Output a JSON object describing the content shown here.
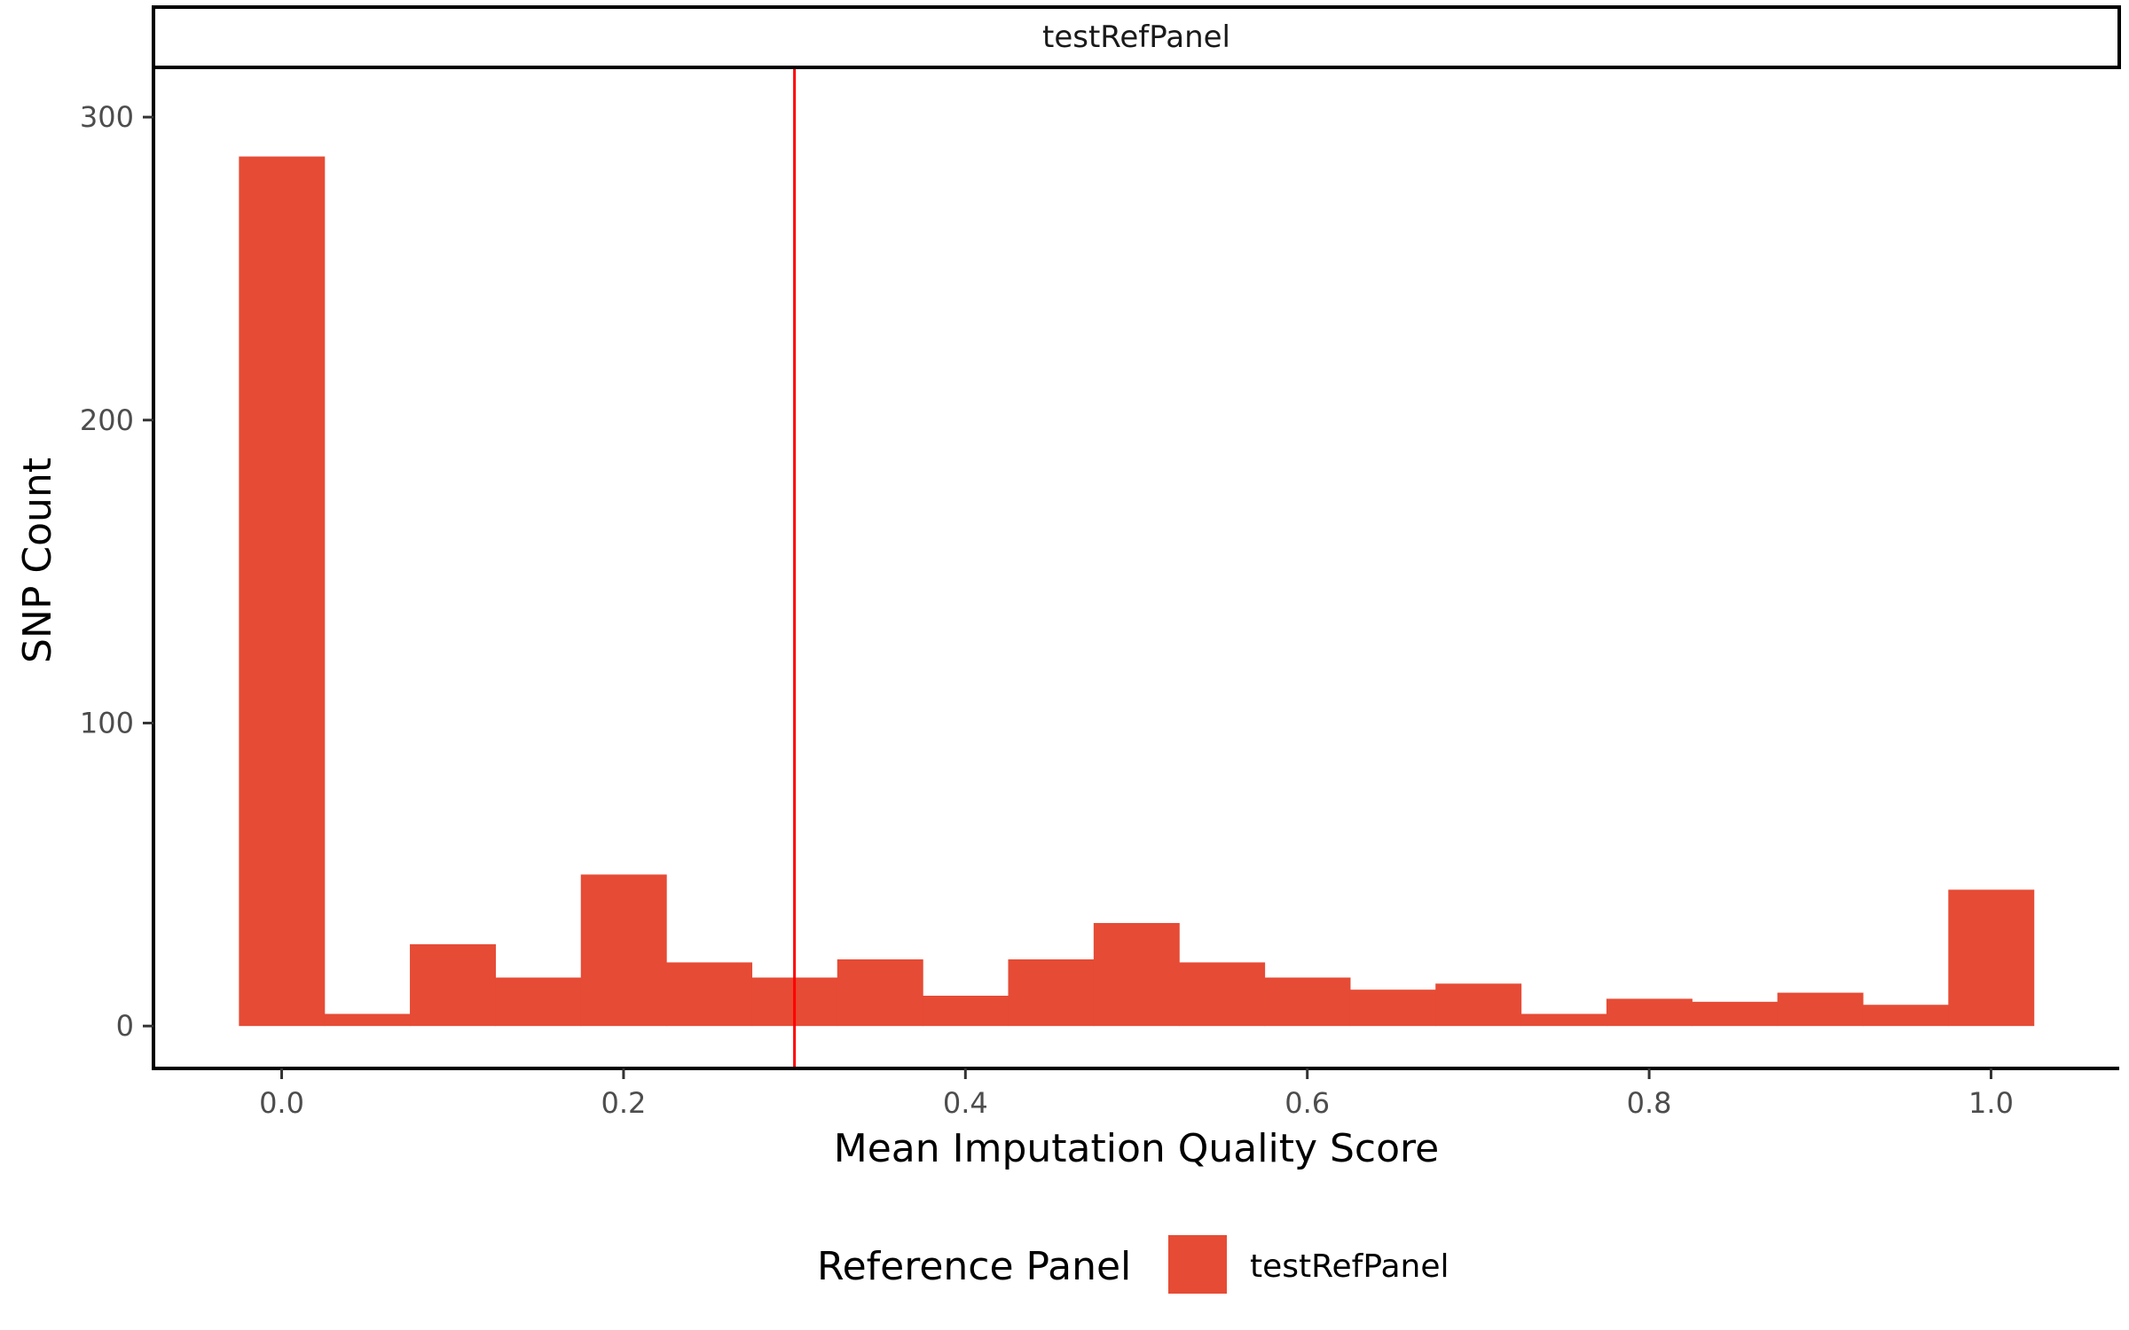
{
  "chart_data": {
    "type": "bar",
    "subtype": "histogram",
    "facet_label": "testRefPanel",
    "xlabel": "Mean Imputation Quality Score",
    "ylabel": "SNP Count",
    "xlim": [
      -0.075,
      1.075
    ],
    "ylim": [
      -14,
      317
    ],
    "x_ticks": [
      0.0,
      0.2,
      0.4,
      0.6,
      0.8,
      1.0
    ],
    "x_tick_labels": [
      "0.0",
      "0.2",
      "0.4",
      "0.6",
      "0.8",
      "1.0"
    ],
    "y_ticks": [
      0,
      100,
      200,
      300
    ],
    "y_tick_labels": [
      "0",
      "100",
      "200",
      "300"
    ],
    "bin_width": 0.05,
    "bin_centers": [
      0.0,
      0.05,
      0.1,
      0.15,
      0.2,
      0.25,
      0.3,
      0.35,
      0.4,
      0.45,
      0.5,
      0.55,
      0.6,
      0.65,
      0.7,
      0.75,
      0.8,
      0.85,
      0.9,
      0.95,
      1.0
    ],
    "values": [
      287,
      4,
      27,
      16,
      50,
      21,
      16,
      22,
      10,
      22,
      34,
      21,
      16,
      12,
      14,
      4,
      9,
      8,
      11,
      7,
      45
    ],
    "threshold_line": {
      "x": 0.3,
      "color": "#ff0000"
    },
    "bar_color": "#e64b35",
    "grid": false,
    "legend": {
      "title": "Reference Panel",
      "position": "bottom",
      "items": [
        {
          "label": "testRefPanel",
          "color": "#e64b35"
        }
      ]
    }
  }
}
